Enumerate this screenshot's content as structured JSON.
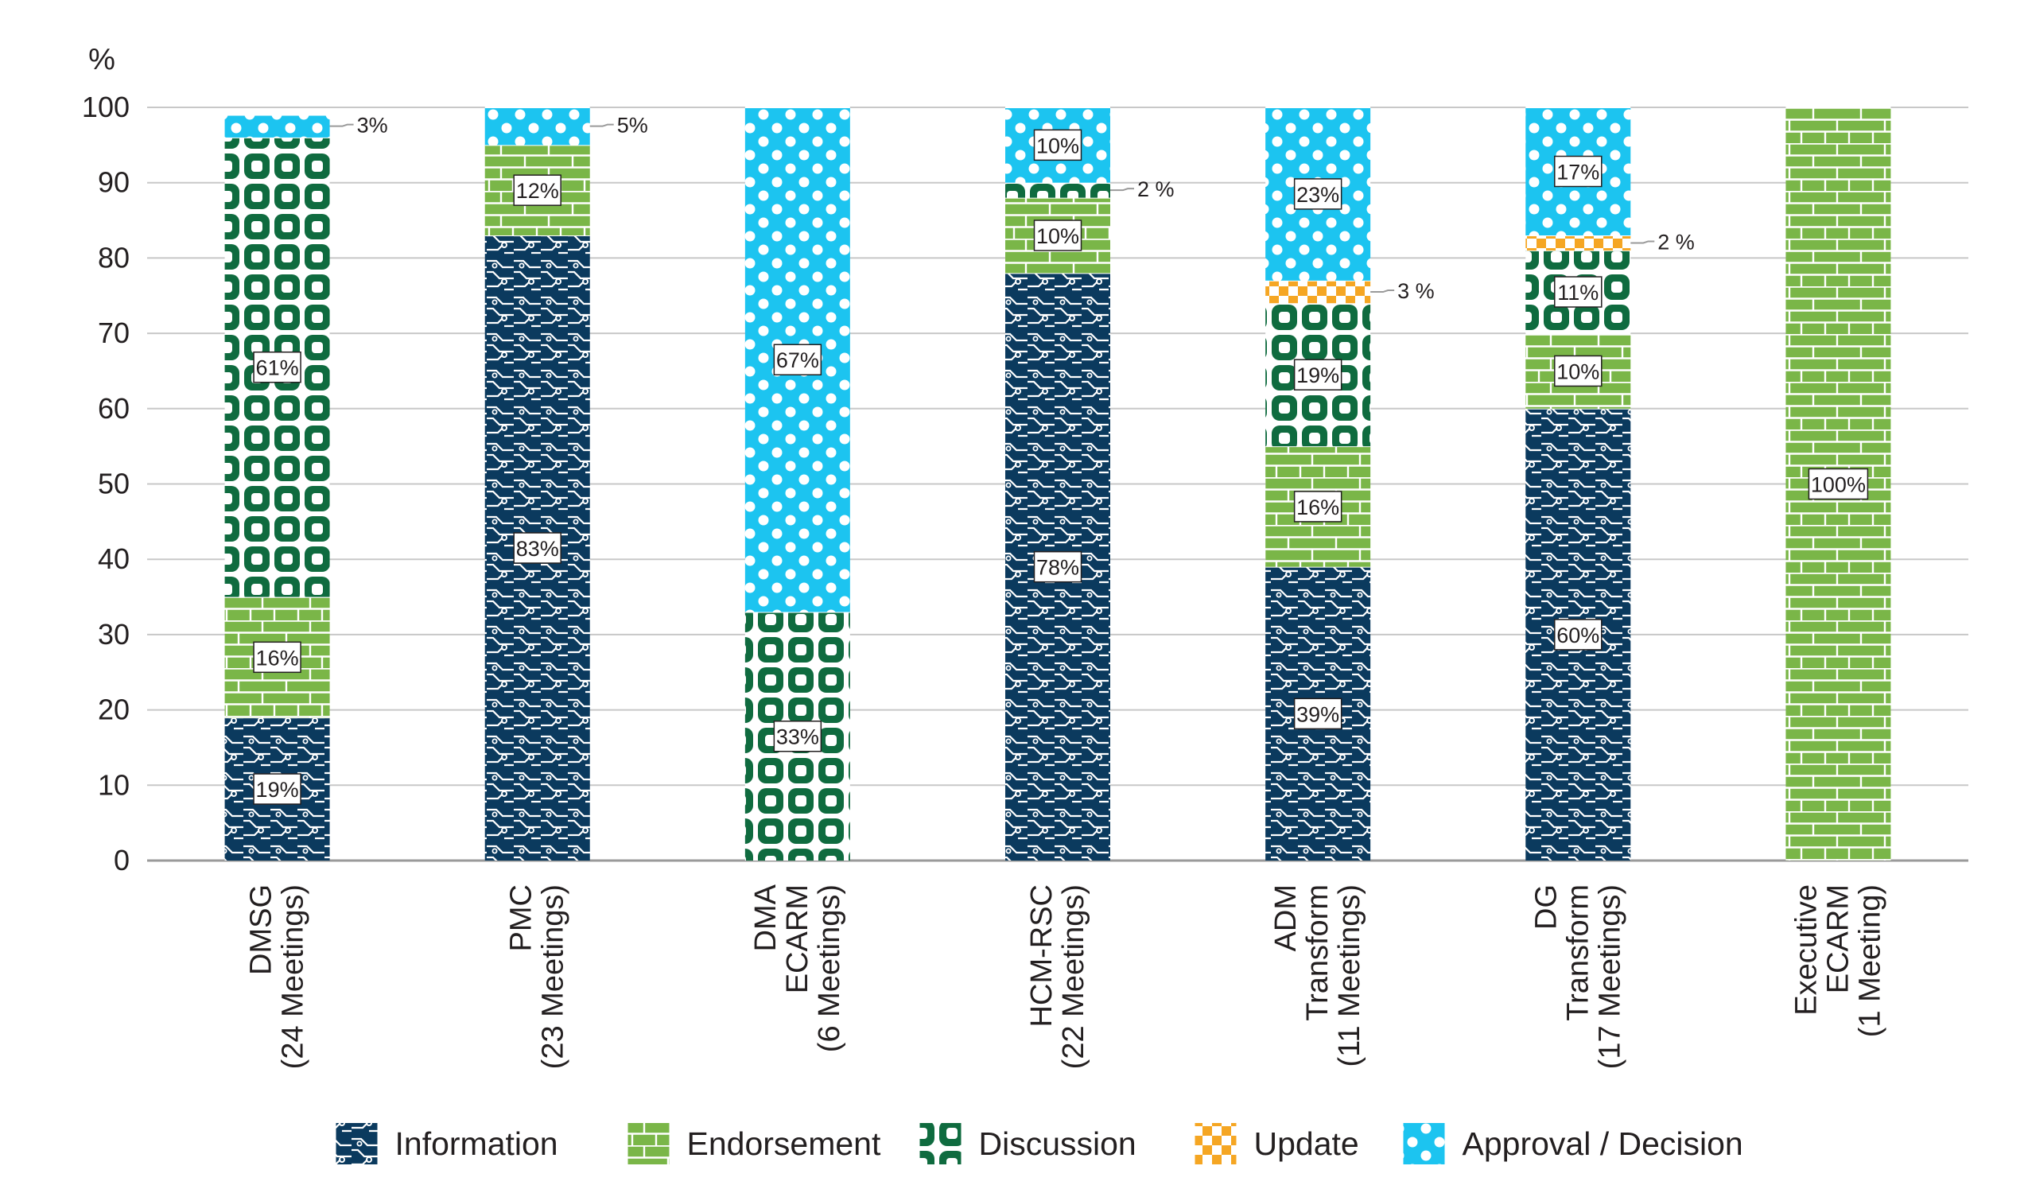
{
  "chart_data": {
    "type": "bar",
    "stacked": true,
    "title": "",
    "xlabel": "",
    "ylabel": "%",
    "ylim": [
      0,
      100
    ],
    "yticks": [
      0,
      10,
      20,
      30,
      40,
      50,
      60,
      70,
      80,
      90,
      100
    ],
    "grid": true,
    "legend_position": "bottom",
    "categories": [
      [
        "DMSG",
        "(24 Meetings)"
      ],
      [
        "PMC",
        "(23 Meetings)"
      ],
      [
        "DMA",
        "ECARM",
        "(6 Meetings)"
      ],
      [
        "HCM-RSC",
        "(22 Meetings)"
      ],
      [
        "ADM",
        "Transform",
        "(11 Meetings)"
      ],
      [
        "DG",
        "Transform",
        "(17 Meetings)"
      ],
      [
        "Executive",
        "ECARM",
        "(1 Meeting)"
      ]
    ],
    "series": [
      {
        "name": "Information",
        "color": "#0b3a5e",
        "pattern": "circuit",
        "values": [
          19,
          83,
          0,
          78,
          39,
          60,
          0
        ],
        "labels": [
          "19%",
          "83%",
          "",
          "78%",
          "39%",
          "60%",
          ""
        ]
      },
      {
        "name": "Endorsement",
        "color": "#7ab648",
        "pattern": "brick",
        "values": [
          16,
          12,
          0,
          10,
          16,
          10,
          100
        ],
        "labels": [
          "16%",
          "12%",
          "",
          "10%",
          "16%",
          "10%",
          "100%"
        ]
      },
      {
        "name": "Discussion",
        "color": "#0f6b3f",
        "pattern": "rounded-squares",
        "values": [
          61,
          0,
          33,
          2,
          19,
          11,
          0
        ],
        "labels": [
          "61%",
          "",
          "33%",
          "2 %",
          "19%",
          "11%",
          ""
        ]
      },
      {
        "name": "Update",
        "color": "#f5a623",
        "pattern": "checker",
        "values": [
          0,
          0,
          0,
          0,
          3,
          2,
          0
        ],
        "labels": [
          "",
          "",
          "",
          "",
          "3 %",
          "2 %",
          ""
        ]
      },
      {
        "name": "Approval / Decision",
        "color": "#1cc4f0",
        "pattern": "dots",
        "values": [
          3,
          5,
          67,
          10,
          23,
          17,
          0
        ],
        "labels": [
          "3%",
          "5%",
          "67%",
          "10%",
          "23%",
          "17%",
          ""
        ]
      }
    ]
  }
}
